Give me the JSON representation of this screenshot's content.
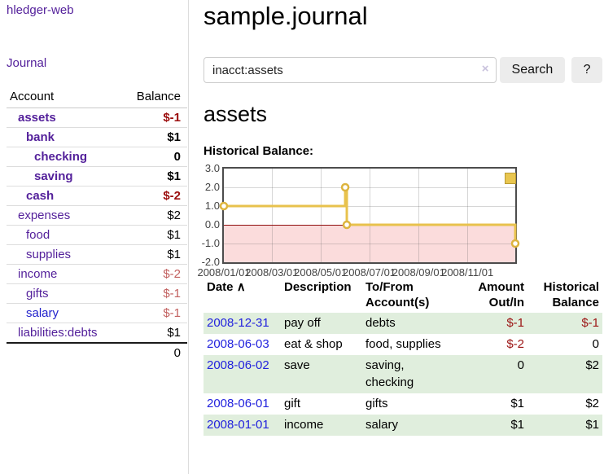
{
  "app": {
    "title": "hledger-web"
  },
  "sidebar": {
    "journal_link": "Journal",
    "accounts_table": {
      "headers": [
        "Account",
        "Balance"
      ],
      "rows": [
        {
          "account": "assets",
          "balance": "$-1"
        },
        {
          "account": "bank",
          "balance": "$1"
        },
        {
          "account": "checking",
          "balance": "0"
        },
        {
          "account": "saving",
          "balance": "$1"
        },
        {
          "account": "cash",
          "balance": "$-2"
        },
        {
          "account": "expenses",
          "balance": "$2"
        },
        {
          "account": "food",
          "balance": "$1"
        },
        {
          "account": "supplies",
          "balance": "$1"
        },
        {
          "account": "income",
          "balance": "$-2"
        },
        {
          "account": "gifts",
          "balance": "$-1"
        },
        {
          "account": "salary",
          "balance": "$-1"
        },
        {
          "account": "liabilities:debts",
          "balance": "$1"
        }
      ],
      "total": "0"
    }
  },
  "header": {
    "title": "sample.journal"
  },
  "search": {
    "value": "inacct:assets",
    "clear_icon": "×",
    "button_label": "Search",
    "help_label": "?"
  },
  "account_page": {
    "heading": "assets",
    "chart_label": "Historical Balance:"
  },
  "chart_data": {
    "type": "line",
    "title": "Historical Balance:",
    "step": true,
    "negative_region_shaded": true,
    "legend": [
      {
        "label": "$",
        "color": "#e9c64f"
      }
    ],
    "legend_position": "top-right",
    "grid": true,
    "ylim": [
      -2,
      3
    ],
    "xlim": [
      "2008-01-01",
      "2008-12-31"
    ],
    "y_ticks": [
      3,
      2,
      1,
      0,
      -1,
      -2
    ],
    "y_tick_labels": [
      "3.0",
      "2.0",
      "1.0",
      "0.0",
      "-1.0",
      "-2.0"
    ],
    "x_ticks": [
      "2008-01-01",
      "2008-03-01",
      "2008-05-01",
      "2008-07-01",
      "2008-09-01",
      "2008-11-01"
    ],
    "x_tick_labels": [
      "2008/01/01",
      "2008/03/01",
      "2008/05/01",
      "2008/07/01",
      "2008/09/01",
      "2008/11/01"
    ],
    "series": [
      {
        "name": "$",
        "points": [
          [
            "2008-01-01",
            1
          ],
          [
            "2008-06-01",
            2
          ],
          [
            "2008-06-03",
            0
          ],
          [
            "2008-12-31",
            -1
          ]
        ]
      }
    ]
  },
  "register": {
    "headers": {
      "date": "Date",
      "sort_icon": "∧",
      "description": "Description",
      "accounts": "To/From Account(s)",
      "amount": "Amount Out/In",
      "balance": "Historical Balance"
    },
    "rows": [
      {
        "date": "2008-12-31",
        "description": "pay off",
        "accounts": "debts",
        "amount": "$-1",
        "balance": "$-1"
      },
      {
        "date": "2008-06-03",
        "description": "eat & shop",
        "accounts": "food, supplies",
        "amount": "$-2",
        "balance": "0"
      },
      {
        "date": "2008-06-02",
        "description": "save",
        "accounts": "saving, checking",
        "amount": "0",
        "balance": "$2"
      },
      {
        "date": "2008-06-01",
        "description": "gift",
        "accounts": "gifts",
        "amount": "$1",
        "balance": "$2"
      },
      {
        "date": "2008-01-01",
        "description": "income",
        "accounts": "salary",
        "amount": "$1",
        "balance": "$1"
      }
    ]
  }
}
